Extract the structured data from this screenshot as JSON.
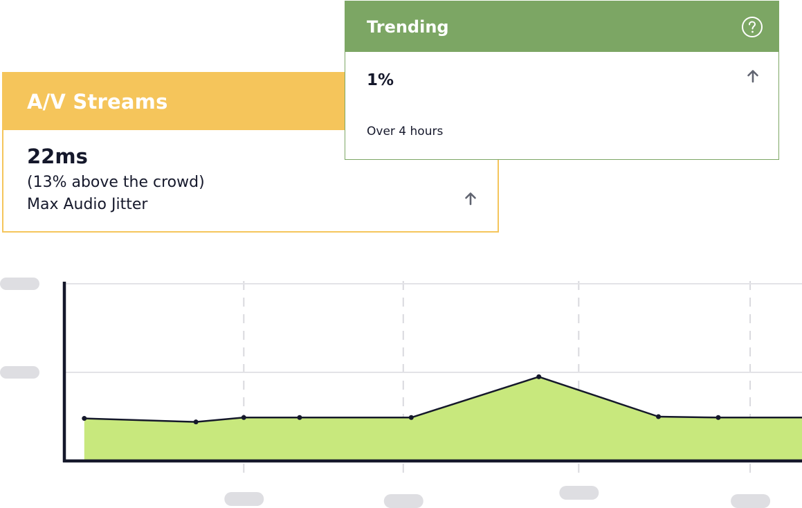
{
  "av_card": {
    "title": "A/V Streams",
    "value": "22ms",
    "comparison": "(13% above the crowd)",
    "metric": "Max Audio Jitter",
    "trend_icon": "arrow-up-icon",
    "color": "#f5c55b"
  },
  "trending_card": {
    "title": "Trending",
    "value": "1%",
    "trend_icon": "arrow-up-icon",
    "help_icon": "question-circle-icon",
    "note": "Over 4 hours",
    "color": "#7ca664"
  },
  "chart_data": {
    "type": "area",
    "title": "",
    "xlabel": "",
    "ylabel": "",
    "x": [
      0,
      1.4,
      2.0,
      2.7,
      4.1,
      5.7,
      7.2,
      7.95,
      9.0
    ],
    "y": [
      0.48,
      0.44,
      0.49,
      0.49,
      0.49,
      0.95,
      0.5,
      0.49,
      0.49
    ],
    "xlim": [
      -0.25,
      9.0
    ],
    "ylim": [
      0,
      2
    ],
    "y_ticks": [
      1,
      2
    ],
    "x_ticks": [
      2.0,
      4.0,
      6.2,
      8.35
    ],
    "tick_labels": "placeholder bars (unlabeled)",
    "grid": true,
    "fill_color": "#c8e87d",
    "line_color": "#15182b"
  }
}
